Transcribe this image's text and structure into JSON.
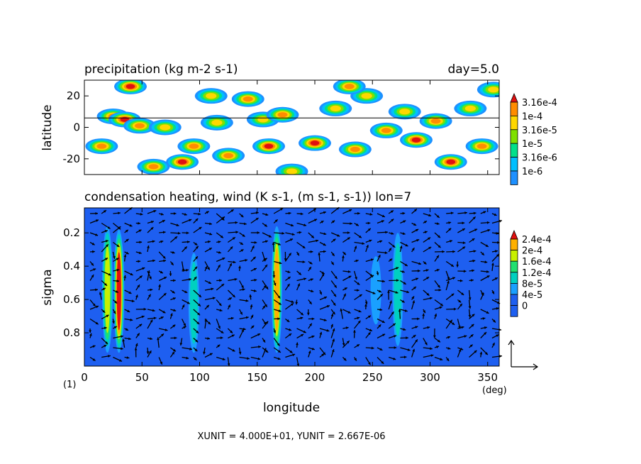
{
  "colors": {
    "precip_levels": [
      "#1e90ff",
      "#00bfff",
      "#00e08a",
      "#7fe000",
      "#ffd700",
      "#ff8c00",
      "#e01010"
    ],
    "heat_levels": [
      "#1e5ff0",
      "#1aa0ff",
      "#00d0c0",
      "#20e070",
      "#c8f000",
      "#ffb000",
      "#e01010"
    ],
    "plot_bg": "#ffffff"
  },
  "panels": {
    "top": {
      "title": "precipitation (kg m-2 s-1)",
      "annotation": "day=5.0"
    },
    "bottom": {
      "title": "condensation heating, wind (K s-1, (m s-1, s-1)) lon=7"
    }
  },
  "xaxis": {
    "label": "longitude",
    "unit": "(deg)",
    "ticks": [
      "0",
      "50",
      "100",
      "150",
      "200",
      "250",
      "300",
      "350"
    ],
    "page_number": "(1)"
  },
  "footer": "XUNIT = 4.000E+01, YUNIT = 2.667E-06",
  "chart_data": [
    {
      "type": "heatmap",
      "title": "precipitation (kg m-2 s-1)",
      "xlabel": "",
      "ylabel": "latitude",
      "xlim": [
        0,
        360
      ],
      "ylim": [
        -30,
        30
      ],
      "yticks": [
        "20",
        "0",
        "-20"
      ],
      "legend_levels": [
        "3.16e-4",
        "1e-4",
        "3.16e-5",
        "1e-5",
        "3.16e-6",
        "1e-6"
      ],
      "reference_line_lat": 6,
      "cells": [
        {
          "lon": 25,
          "lat": 7,
          "level": 5
        },
        {
          "lon": 35,
          "lat": 5,
          "level": 6
        },
        {
          "lon": 48,
          "lat": 1,
          "level": 5
        },
        {
          "lon": 15,
          "lat": -12,
          "level": 5
        },
        {
          "lon": 40,
          "lat": 26,
          "level": 6
        },
        {
          "lon": 70,
          "lat": 0,
          "level": 4
        },
        {
          "lon": 85,
          "lat": -22,
          "level": 6
        },
        {
          "lon": 95,
          "lat": -12,
          "level": 5
        },
        {
          "lon": 115,
          "lat": 3,
          "level": 4
        },
        {
          "lon": 125,
          "lat": -18,
          "level": 5
        },
        {
          "lon": 142,
          "lat": 18,
          "level": 5
        },
        {
          "lon": 155,
          "lat": 5,
          "level": 4
        },
        {
          "lon": 160,
          "lat": -12,
          "level": 6
        },
        {
          "lon": 172,
          "lat": 8,
          "level": 5
        },
        {
          "lon": 180,
          "lat": -28,
          "level": 4
        },
        {
          "lon": 200,
          "lat": -10,
          "level": 6
        },
        {
          "lon": 218,
          "lat": 12,
          "level": 4
        },
        {
          "lon": 235,
          "lat": -14,
          "level": 5
        },
        {
          "lon": 245,
          "lat": 20,
          "level": 4
        },
        {
          "lon": 262,
          "lat": -2,
          "level": 5
        },
        {
          "lon": 278,
          "lat": 10,
          "level": 4
        },
        {
          "lon": 288,
          "lat": -8,
          "level": 6
        },
        {
          "lon": 305,
          "lat": 4,
          "level": 5
        },
        {
          "lon": 318,
          "lat": -22,
          "level": 6
        },
        {
          "lon": 335,
          "lat": 12,
          "level": 4
        },
        {
          "lon": 345,
          "lat": -12,
          "level": 5
        },
        {
          "lon": 355,
          "lat": 24,
          "level": 4
        },
        {
          "lon": 230,
          "lat": 26,
          "level": 5
        },
        {
          "lon": 110,
          "lat": 20,
          "level": 4
        },
        {
          "lon": 60,
          "lat": -25,
          "level": 5
        }
      ]
    },
    {
      "type": "heatmap",
      "title": "condensation heating, wind (K s-1, (m s-1, s-1)) lon=7",
      "xlabel": "longitude",
      "ylabel": "sigma",
      "xlim": [
        0,
        360
      ],
      "ylim": [
        1.0,
        0.05
      ],
      "yticks": [
        "0.2",
        "0.4",
        "0.6",
        "0.8"
      ],
      "legend_levels": [
        "2.4e-4",
        "2e-4",
        "1.6e-4",
        "1.2e-4",
        "8e-5",
        "4e-5",
        "0"
      ],
      "background_level": 0,
      "columns": [
        {
          "lon": 20,
          "top": 0.16,
          "bottom": 0.92,
          "peak": 4
        },
        {
          "lon": 30,
          "top": 0.18,
          "bottom": 0.92,
          "peak": 6
        },
        {
          "lon": 95,
          "top": 0.32,
          "bottom": 0.92,
          "peak": 2
        },
        {
          "lon": 167,
          "top": 0.16,
          "bottom": 0.92,
          "peak": 5
        },
        {
          "lon": 253,
          "top": 0.34,
          "bottom": 0.75,
          "peak": 1
        },
        {
          "lon": 272,
          "top": 0.2,
          "bottom": 0.88,
          "peak": 2
        }
      ],
      "vector_reference": {
        "xunit": "4.000E+01",
        "yunit": "2.667E-06"
      }
    }
  ]
}
